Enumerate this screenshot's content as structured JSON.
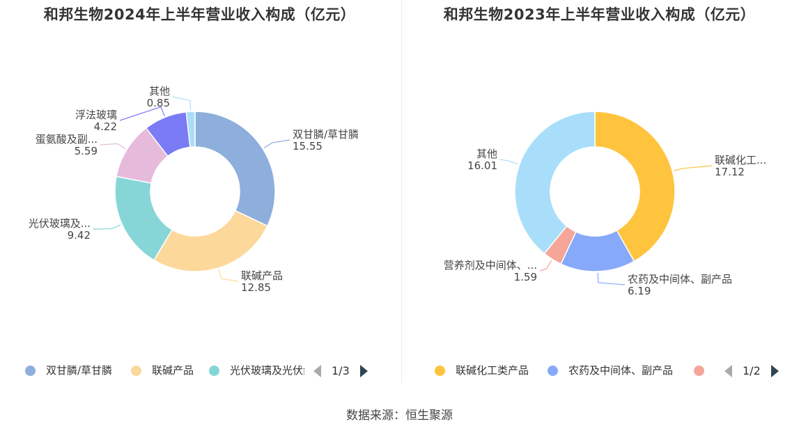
{
  "footer": {
    "source": "数据来源：恒生聚源"
  },
  "chart_data": [
    {
      "type": "pie",
      "title": "和邦生物2024年上半年营业收入构成（亿元）",
      "slices": [
        {
          "name": "双甘膦/草甘膦",
          "label": "双甘膦/草甘膦",
          "value": 15.55,
          "color": "#8eaedb"
        },
        {
          "name": "联碱产品",
          "label": "联碱产品",
          "value": 12.85,
          "color": "#fdd89b"
        },
        {
          "name": "光伏玻璃及光伏组件",
          "label": "光伏玻璃及...",
          "value": 9.42,
          "color": "#86d6d8"
        },
        {
          "name": "蛋氨酸及副产品",
          "label": "蛋氨酸及副...",
          "value": 5.59,
          "color": "#e6bada"
        },
        {
          "name": "浮法玻璃",
          "label": "浮法玻璃",
          "value": 4.22,
          "color": "#7b7bf6"
        },
        {
          "name": "其他",
          "label": "其他",
          "value": 0.85,
          "color": "#a8def9"
        }
      ],
      "legend": {
        "position": "bottom",
        "items": [
          {
            "label": "双甘膦/草甘膦",
            "color": "#8eaedb"
          },
          {
            "label": "联碱产品",
            "color": "#fdd89b"
          },
          {
            "label": "光伏玻璃及光伏组件",
            "color": "#86d6d8"
          }
        ],
        "page": "1/3"
      }
    },
    {
      "type": "pie",
      "title": "和邦生物2023年上半年营业收入构成（亿元）",
      "slices": [
        {
          "name": "联碱化工类产品",
          "label": "联碱化工...",
          "value": 17.12,
          "color": "#fec43d"
        },
        {
          "name": "农药及中间体、副产品",
          "label": "农药及中间体、副产品",
          "value": 6.19,
          "color": "#87a9fa"
        },
        {
          "name": "营养剂及中间体、副产品",
          "label": "营养剂及中间体、...",
          "value": 1.59,
          "color": "#f6a599"
        },
        {
          "name": "其他",
          "label": "其他",
          "value": 16.01,
          "color": "#a8def9"
        }
      ],
      "legend": {
        "position": "bottom",
        "items": [
          {
            "label": "联碱化工类产品",
            "color": "#fec43d"
          },
          {
            "label": "农药及中间体、副产品",
            "color": "#87a9fa"
          },
          {
            "label": "",
            "color": "#f6a599"
          }
        ],
        "page": "1/2"
      }
    }
  ]
}
